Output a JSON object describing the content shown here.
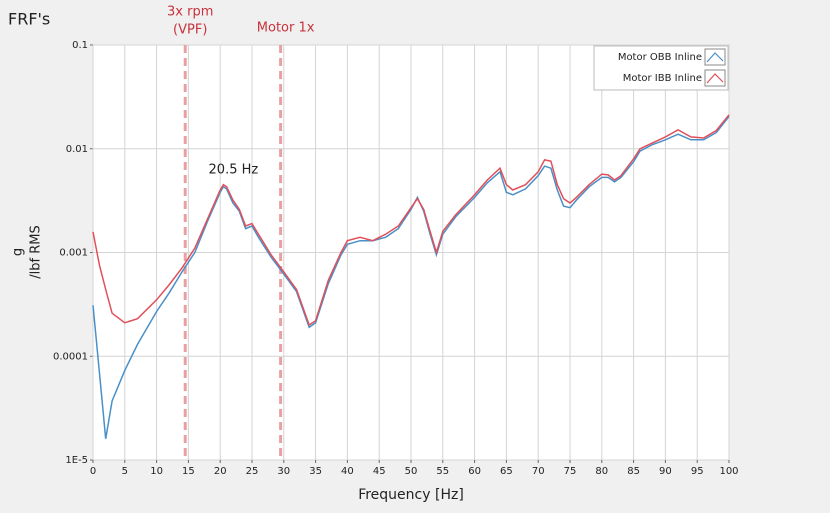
{
  "chart_data": {
    "type": "line",
    "title": "FRF's",
    "x_label": "Frequency [Hz]",
    "y_label": [
      "g",
      "/lbf RMS"
    ],
    "log_y": true,
    "grid": true,
    "legend": "upper right",
    "xlim": [
      0,
      100
    ],
    "xticks": [
      0,
      5,
      10,
      15,
      20,
      25,
      30,
      35,
      40,
      45,
      50,
      55,
      60,
      65,
      70,
      75,
      80,
      85,
      90,
      95,
      100
    ],
    "ylim": [
      1e-05,
      0.1
    ],
    "yticks": [
      {
        "value": 1e-05,
        "label": "1E-5"
      },
      0.0001,
      0.001,
      0.01,
      0.1
    ],
    "markers": [
      {
        "x": 14.5,
        "label": [
          "3x rpm",
          "(VPF)"
        ],
        "color": "#e8a0a0"
      },
      {
        "x": 29.5,
        "label": [
          "Motor 1x"
        ],
        "color": "#e8a0a0"
      }
    ],
    "annotations": [
      {
        "x": 20.5,
        "text": "20.5 Hz"
      }
    ],
    "x": [
      0,
      1,
      2,
      3,
      5,
      7,
      10,
      12,
      14,
      16,
      18,
      20,
      20.5,
      21,
      22,
      23,
      24,
      25,
      26,
      28,
      30,
      32,
      34,
      35,
      37,
      39,
      40,
      42,
      44,
      46,
      48,
      50,
      51,
      52,
      53,
      54,
      55,
      57,
      60,
      62,
      64,
      65,
      66,
      68,
      70,
      71,
      72,
      73,
      74,
      75,
      76,
      78,
      80,
      81,
      82,
      83,
      85,
      86,
      88,
      90,
      92,
      94,
      96,
      98,
      100
    ],
    "series": [
      {
        "name": "Motor OBB Inline",
        "color": "#4a90c8",
        "values": [
          0.00031,
          7e-05,
          1.6e-05,
          3.7e-05,
          7.3e-05,
          0.00013,
          0.00027,
          0.00041,
          0.00065,
          0.001,
          0.002,
          0.0038,
          0.0043,
          0.0041,
          0.003,
          0.0025,
          0.0017,
          0.0018,
          0.0014,
          0.0009,
          0.00062,
          0.00042,
          0.00019,
          0.00021,
          0.0005,
          0.00095,
          0.0012,
          0.0013,
          0.0013,
          0.0014,
          0.0017,
          0.0026,
          0.0034,
          0.0025,
          0.0015,
          0.00095,
          0.0015,
          0.0022,
          0.0034,
          0.0047,
          0.006,
          0.0038,
          0.0036,
          0.0041,
          0.0055,
          0.0068,
          0.0065,
          0.004,
          0.0028,
          0.0027,
          0.0032,
          0.0043,
          0.0053,
          0.0053,
          0.0048,
          0.0053,
          0.0075,
          0.0095,
          0.011,
          0.0122,
          0.0138,
          0.0122,
          0.0122,
          0.0143,
          0.0205
        ]
      },
      {
        "name": "Motor IBB Inline",
        "color": "#e0505a",
        "values": [
          0.00158,
          0.00076,
          0.00044,
          0.00026,
          0.00021,
          0.00023,
          0.00035,
          0.00049,
          0.00071,
          0.0011,
          0.0021,
          0.004,
          0.0045,
          0.0043,
          0.0032,
          0.0026,
          0.0018,
          0.0019,
          0.0015,
          0.00095,
          0.00065,
          0.00044,
          0.0002,
          0.00022,
          0.00054,
          0.001,
          0.0013,
          0.0014,
          0.0013,
          0.0015,
          0.0018,
          0.0027,
          0.0033,
          0.0026,
          0.0016,
          0.001,
          0.0016,
          0.0023,
          0.0036,
          0.005,
          0.0065,
          0.0045,
          0.004,
          0.0045,
          0.006,
          0.0078,
          0.0076,
          0.0045,
          0.0033,
          0.003,
          0.0034,
          0.0045,
          0.0057,
          0.0056,
          0.005,
          0.0055,
          0.008,
          0.01,
          0.0114,
          0.013,
          0.0152,
          0.013,
          0.0127,
          0.015,
          0.0212
        ]
      }
    ]
  }
}
